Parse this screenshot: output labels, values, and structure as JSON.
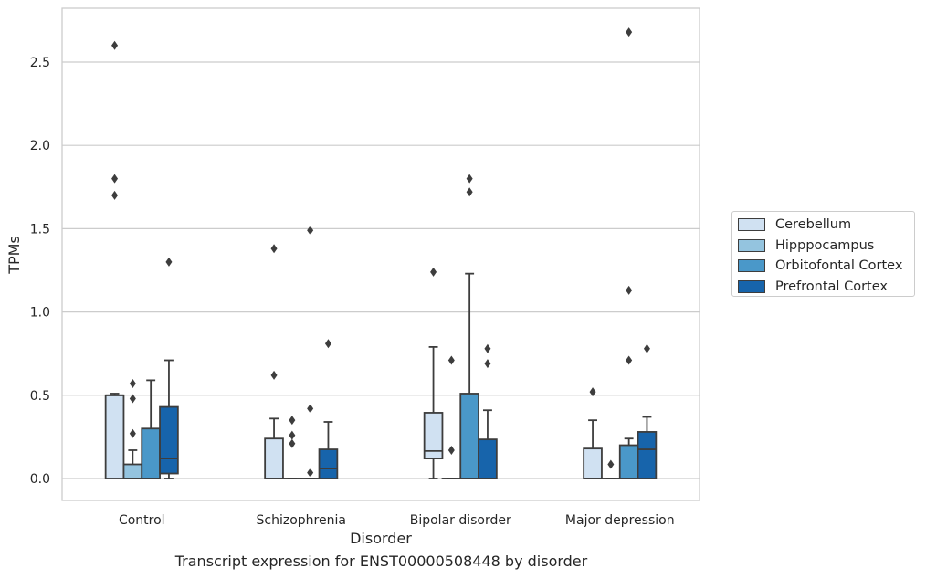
{
  "chart_data": {
    "type": "box",
    "title": "",
    "caption": "Transcript expression for ENST00000508448 by disorder",
    "xlabel": "Disorder",
    "ylabel": "TPMs",
    "categories": [
      "Control",
      "Schizophrenia",
      "Bipolar disorder",
      "Major depression"
    ],
    "ylim": [
      -0.13,
      2.82
    ],
    "yticks": [
      0.0,
      0.5,
      1.0,
      1.5,
      2.0,
      2.5
    ],
    "ytick_labels": [
      "0.0",
      "0.5",
      "1.0",
      "1.5",
      "2.0",
      "2.5"
    ],
    "grid": "horizontal",
    "legend_position": "right, outside plot",
    "colors": {
      "Cerebellum": "#d0e1f2",
      "Hipppocampus": "#94c4df",
      "Orbitofontal Cortex": "#4a98c9",
      "Prefrontal Cortex": "#1764ab",
      "box_edge": "#3d3d3d",
      "grid": "#cccccc"
    },
    "series": [
      {
        "name": "Cerebellum",
        "boxes": [
          {
            "min": 0.0,
            "q1": 0.0,
            "median": 0.5,
            "q3": 0.5,
            "max": 0.51,
            "outliers": [
              2.6,
              1.8,
              1.7
            ]
          },
          {
            "min": 0.0,
            "q1": 0.0,
            "median": 0.0,
            "q3": 0.24,
            "max": 0.36,
            "outliers": [
              1.38,
              0.62
            ]
          },
          {
            "min": 0.0,
            "q1": 0.12,
            "median": 0.165,
            "q3": 0.395,
            "max": 0.79,
            "outliers": [
              1.24
            ]
          },
          {
            "min": 0.0,
            "q1": 0.0,
            "median": 0.0,
            "q3": 0.18,
            "max": 0.35,
            "outliers": [
              0.52
            ]
          }
        ]
      },
      {
        "name": "Hipppocampus",
        "boxes": [
          {
            "min": 0.0,
            "q1": 0.0,
            "median": 0.0,
            "q3": 0.085,
            "max": 0.17,
            "outliers": [
              0.57,
              0.48,
              0.27
            ]
          },
          {
            "min": 0.0,
            "q1": 0.0,
            "median": 0.0,
            "q3": 0.0,
            "max": 0.0,
            "outliers": [
              0.35,
              0.26,
              0.21
            ]
          },
          {
            "min": 0.0,
            "q1": 0.0,
            "median": 0.0,
            "q3": 0.0,
            "max": 0.0,
            "outliers": [
              0.71,
              0.17
            ]
          },
          {
            "min": 0.0,
            "q1": 0.0,
            "median": 0.0,
            "q3": 0.0,
            "max": 0.0,
            "outliers": [
              0.085
            ]
          }
        ]
      },
      {
        "name": "Orbitofontal Cortex",
        "boxes": [
          {
            "min": 0.0,
            "q1": 0.0,
            "median": 0.0,
            "q3": 0.3,
            "max": 0.59,
            "outliers": []
          },
          {
            "min": 0.0,
            "q1": 0.0,
            "median": 0.0,
            "q3": 0.0,
            "max": 0.0,
            "outliers": [
              1.49,
              0.42,
              0.035
            ]
          },
          {
            "min": 0.0,
            "q1": 0.0,
            "median": 0.0,
            "q3": 0.51,
            "max": 1.23,
            "outliers": [
              1.8,
              1.72
            ]
          },
          {
            "min": 0.0,
            "q1": 0.0,
            "median": 0.0,
            "q3": 0.2,
            "max": 0.24,
            "outliers": [
              2.68,
              1.13,
              0.71
            ]
          }
        ]
      },
      {
        "name": "Prefrontal Cortex",
        "boxes": [
          {
            "min": 0.0,
            "q1": 0.03,
            "median": 0.12,
            "q3": 0.43,
            "max": 0.71,
            "outliers": [
              1.3
            ]
          },
          {
            "min": 0.0,
            "q1": 0.0,
            "median": 0.06,
            "q3": 0.175,
            "max": 0.34,
            "outliers": [
              0.81
            ]
          },
          {
            "min": 0.0,
            "q1": 0.0,
            "median": 0.0,
            "q3": 0.235,
            "max": 0.41,
            "outliers": [
              0.78,
              0.69
            ]
          },
          {
            "min": 0.0,
            "q1": 0.0,
            "median": 0.175,
            "q3": 0.28,
            "max": 0.37,
            "outliers": [
              0.78
            ]
          }
        ]
      }
    ]
  }
}
